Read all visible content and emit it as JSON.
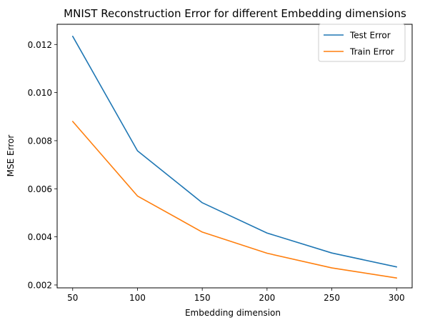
{
  "chart_data": {
    "type": "line",
    "title": "MNIST Reconstruction Error for different Embedding dimensions",
    "xlabel": "Embedding dimension",
    "ylabel": "MSE Error",
    "x": [
      50,
      100,
      150,
      200,
      250,
      300
    ],
    "xlim": [
      38,
      312
    ],
    "ylim": [
      0.00188,
      0.01284
    ],
    "xticks": [
      {
        "value": 50,
        "label": "50"
      },
      {
        "value": 100,
        "label": "100"
      },
      {
        "value": 150,
        "label": "150"
      },
      {
        "value": 200,
        "label": "200"
      },
      {
        "value": 250,
        "label": "250"
      },
      {
        "value": 300,
        "label": "300"
      }
    ],
    "yticks": [
      {
        "value": 0.002,
        "label": "0.002"
      },
      {
        "value": 0.004,
        "label": "0.004"
      },
      {
        "value": 0.006,
        "label": "0.006"
      },
      {
        "value": 0.008,
        "label": "0.008"
      },
      {
        "value": 0.01,
        "label": "0.010"
      },
      {
        "value": 0.012,
        "label": "0.012"
      }
    ],
    "grid": false,
    "legend_position": "top-right",
    "series": [
      {
        "name": "Test Error",
        "color": "#1f77b4",
        "values": [
          0.01234,
          0.00758,
          0.00542,
          0.00416,
          0.00333,
          0.00275
        ]
      },
      {
        "name": "Train Error",
        "color": "#ff7f0e",
        "values": [
          0.0088,
          0.0057,
          0.0042,
          0.00332,
          0.00271,
          0.00229
        ]
      }
    ]
  }
}
